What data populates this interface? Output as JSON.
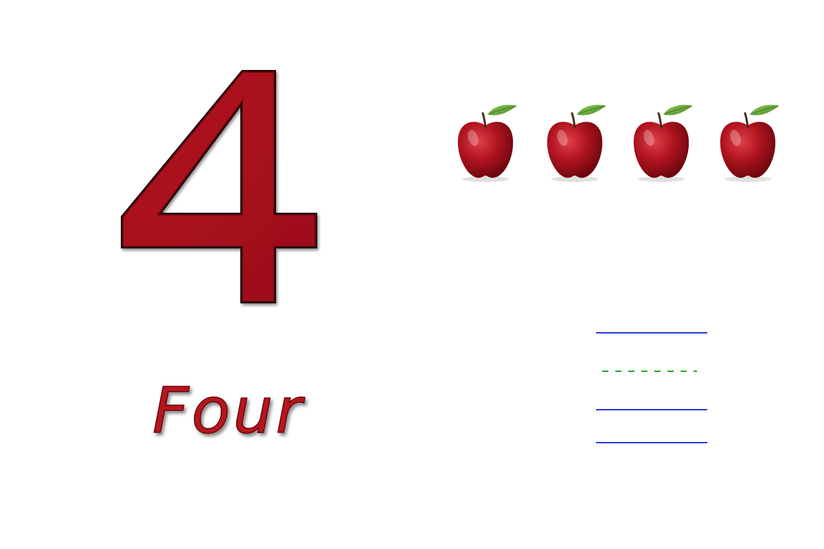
{
  "numeral": {
    "text": "4",
    "color": "#a8131b",
    "outline": "#1a0505"
  },
  "word": {
    "text": "Four",
    "color": "#b5141c"
  },
  "apples": {
    "count": 4,
    "icon": "apple-icon",
    "skin_color": "#9e0f1a",
    "leaf_color": "#6fae3a"
  },
  "handwriting_guide": {
    "line_color": "#2436d8",
    "dashed_color": "#22a322",
    "lines": [
      "solid",
      "dashed",
      "solid",
      "solid"
    ]
  }
}
